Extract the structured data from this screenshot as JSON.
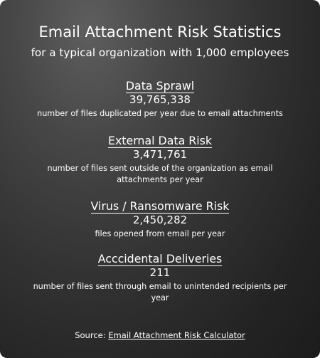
{
  "title": "Email Attachment Risk Statistics",
  "subtitle": "for a typical organization with 1,000 employees",
  "stats": [
    {
      "heading": "Data Sprawl",
      "value": "39,765,338",
      "description": "number of files duplicated per year due to email attachments"
    },
    {
      "heading": "External Data Risk",
      "value": "3,471,761",
      "description": "number of files sent outside of the organization as email attachments per year"
    },
    {
      "heading": "Virus / Ransomware Risk",
      "value": "2,450,282",
      "description": "files opened from email per year"
    },
    {
      "heading": "Acccidental Deliveries",
      "value": "211",
      "description": "number of files sent through email to unintended recipients per year"
    }
  ],
  "source": {
    "label": "Source:",
    "link_text": "Email Attachment Risk Calculator"
  }
}
